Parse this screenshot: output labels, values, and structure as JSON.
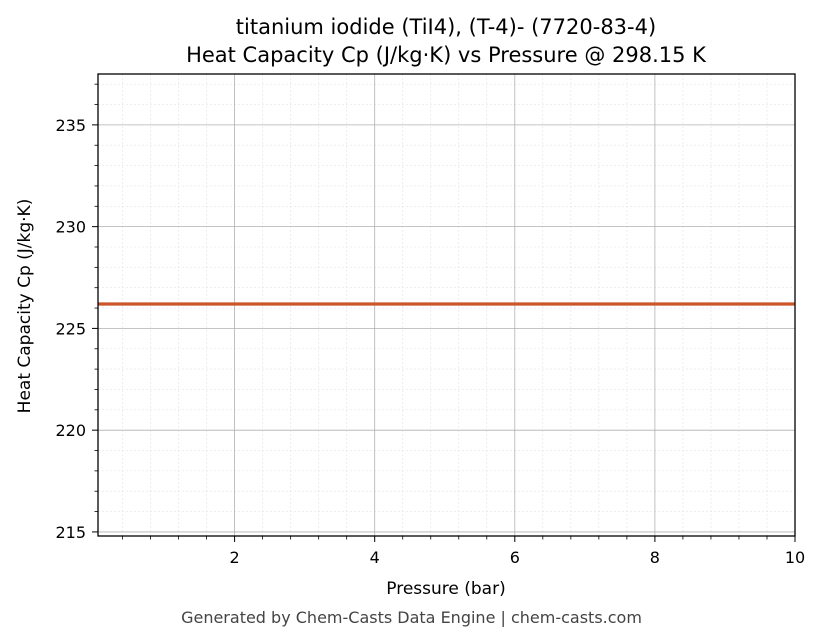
{
  "chart_data": {
    "type": "line",
    "title": "titanium iodide (TiI4), (T-4)- (7720-83-4)",
    "subtitle": "Heat Capacity Cp (J/kg·K) vs Pressure @ 298.15 K",
    "xlabel": "Pressure (bar)",
    "ylabel": "Heat Capacity Cp (J/kg·K)",
    "xlim": [
      0.05,
      10
    ],
    "ylim": [
      214.8,
      237.5
    ],
    "xticks": [
      2,
      4,
      6,
      8,
      10
    ],
    "yticks": [
      215,
      220,
      225,
      230,
      235
    ],
    "grid": true,
    "series": [
      {
        "color": "#cc5529",
        "x": [
          0.05,
          10
        ],
        "y": [
          226.2,
          226.2
        ]
      }
    ]
  },
  "footer": "Generated by Chem-Casts Data Engine | chem-casts.com"
}
